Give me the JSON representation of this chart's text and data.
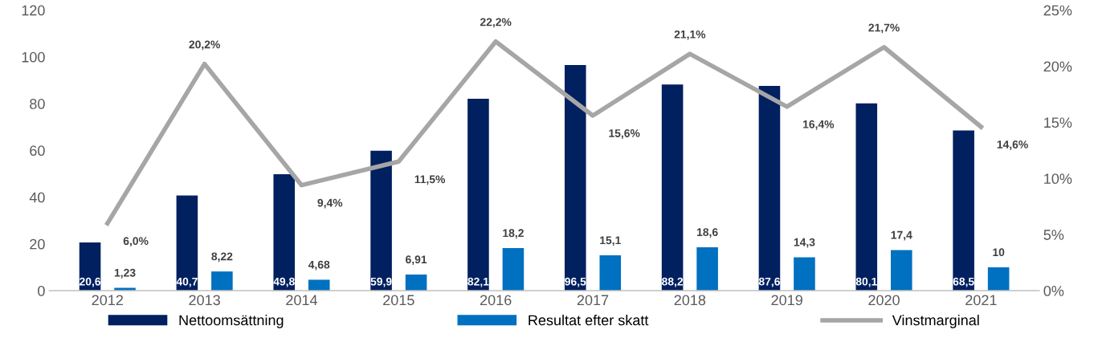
{
  "chart_data": {
    "type": "bar",
    "categories": [
      "2012",
      "2013",
      "2014",
      "2015",
      "2016",
      "2017",
      "2018",
      "2019",
      "2020",
      "2021"
    ],
    "series": [
      {
        "name": "Nettoomsättning",
        "color": "#002060",
        "values": [
          20.6,
          40.7,
          49.8,
          59.9,
          82.1,
          96.5,
          88.2,
          87.6,
          80.1,
          68.5
        ],
        "value_labels": [
          "20,6",
          "40,7",
          "49,8",
          "59,9",
          "82,1",
          "96,5",
          "88,2",
          "87,6",
          "80,1",
          "68,5"
        ]
      },
      {
        "name": "Resultat efter skatt",
        "color": "#0070c0",
        "values": [
          1.23,
          8.22,
          4.68,
          6.91,
          18.2,
          15.1,
          18.6,
          14.3,
          17.4,
          10
        ],
        "value_labels": [
          "1,23",
          "8,22",
          "4,68",
          "6,91",
          "18,2",
          "15,1",
          "18,6",
          "14,3",
          "17,4",
          "10"
        ]
      },
      {
        "name": "Vinstmarginal",
        "type": "line",
        "axis": "y2",
        "color": "#a6a6a6",
        "values": [
          6.0,
          20.2,
          9.4,
          11.5,
          22.2,
          15.6,
          21.1,
          16.4,
          21.7,
          14.6
        ],
        "value_labels": [
          "6,0%",
          "20,2%",
          "9,4%",
          "11,5%",
          "22,2%",
          "15,6%",
          "21,1%",
          "16,4%",
          "21,7%",
          "14,6%"
        ]
      }
    ],
    "ylim": [
      0,
      120
    ],
    "yticks": [
      0,
      20,
      40,
      60,
      80,
      100,
      120
    ],
    "y2lim": [
      0,
      25
    ],
    "y2ticks": [
      {
        "value": 0,
        "label": "0%"
      },
      {
        "value": 5,
        "label": "5%"
      },
      {
        "value": 10,
        "label": "10%"
      },
      {
        "value": 15,
        "label": "15%"
      },
      {
        "value": 20,
        "label": "20%"
      },
      {
        "value": 25,
        "label": "25%"
      }
    ],
    "grid": false,
    "legend": "bottom",
    "marker": "none",
    "line_style": "solid"
  }
}
